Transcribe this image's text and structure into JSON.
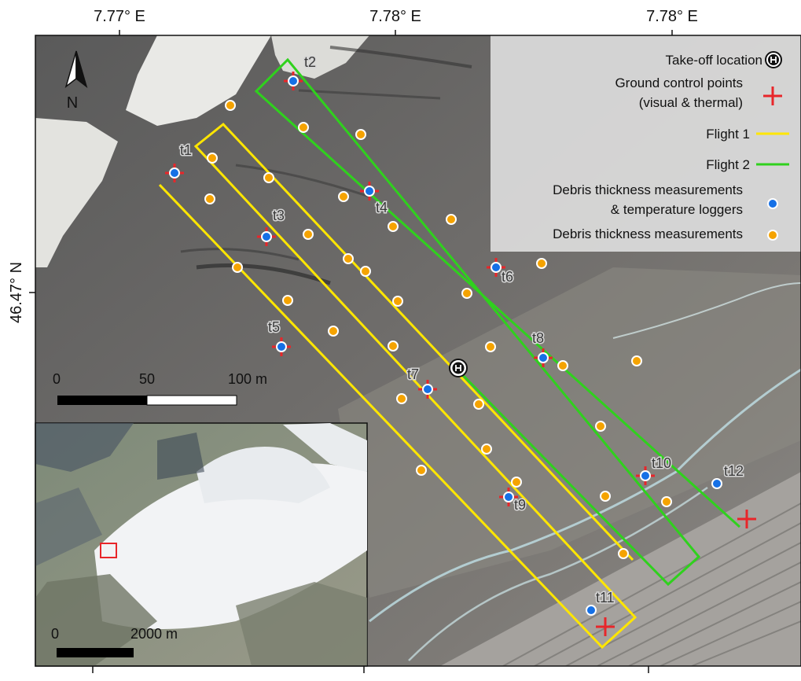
{
  "map": {
    "axes": {
      "top_ticks": [
        "7.77° E",
        "7.78° E",
        "7.78° E"
      ],
      "left_ticks": [
        "46.47° N"
      ]
    },
    "north_arrow": {
      "label": "N",
      "icon": "north-arrow-icon"
    },
    "legend": {
      "entries": [
        {
          "lines": [
            "Take-off location"
          ],
          "symbol": "takeoff-helipad-icon"
        },
        {
          "lines": [
            "Ground control points",
            "(visual & thermal)"
          ],
          "symbol": "red-cross-icon",
          "color": "#e8262a"
        },
        {
          "lines": [
            "Flight 1"
          ],
          "symbol": "yellow-line",
          "color": "#ffe600"
        },
        {
          "lines": [
            "Flight 2"
          ],
          "symbol": "green-line",
          "color": "#2fd11d"
        },
        {
          "lines": [
            "Debris thickness measurements",
            "& temperature loggers"
          ],
          "symbol": "blue-dot",
          "color": "#1570e6"
        },
        {
          "lines": [
            "Debris thickness measurements"
          ],
          "symbol": "orange-dot",
          "color": "#f5a300"
        }
      ]
    },
    "scalebar": {
      "labels": [
        "0",
        "50",
        "100 m"
      ]
    },
    "inset": {
      "scalebar_labels": [
        "0",
        "2000 m"
      ],
      "marker_color": "#e8262a"
    },
    "sites": [
      "t1",
      "t2",
      "t3",
      "t4",
      "t5",
      "t6",
      "t7",
      "t8",
      "t9",
      "t10",
      "t11",
      "t12"
    ],
    "colors": {
      "flight1": "#ffe600",
      "flight2": "#2fd11d",
      "gcp": "#e8262a",
      "logger": "#1570e6",
      "debris": "#f5a300"
    }
  }
}
